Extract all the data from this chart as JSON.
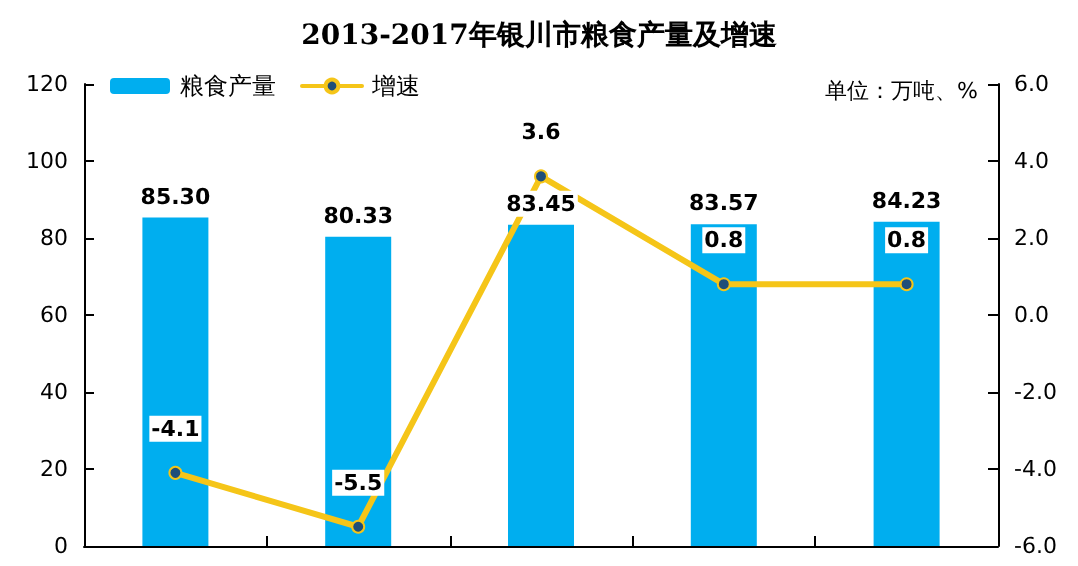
{
  "chart_data": {
    "type": "bar",
    "title": "2013-2017年银川市粮食产量及增速",
    "annotations": [
      "单位：万吨、%"
    ],
    "categories": [
      null,
      null,
      null,
      null,
      null
    ],
    "series": [
      {
        "name": "粮食产量",
        "type": "bar",
        "color": "#00aeef",
        "values": [
          85.3,
          80.33,
          83.45,
          83.57,
          84.23
        ],
        "value_labels": [
          "85.30",
          "80.33",
          "83.45",
          "83.57",
          "84.23"
        ]
      },
      {
        "name": "增速",
        "type": "line",
        "axis": "y2",
        "color": "#f5c518",
        "marker": "circle",
        "values": [
          -4.1,
          -5.5,
          3.6,
          0.8,
          0.8
        ],
        "value_labels": [
          "-4.1",
          "-5.5",
          "3.6",
          "0.8",
          "0.8"
        ]
      }
    ],
    "ylim": [
      0,
      120
    ],
    "yticks": [
      0,
      20,
      40,
      60,
      80,
      100,
      120
    ],
    "y2lim": [
      -6,
      6
    ],
    "y2ticks": [
      {
        "value": -6,
        "label": "-6.0"
      },
      {
        "value": -4,
        "label": "-4.0"
      },
      {
        "value": -2,
        "label": "-2.0"
      },
      {
        "value": 0,
        "label": "0.0"
      },
      {
        "value": 2,
        "label": "2.0"
      },
      {
        "value": 4,
        "label": "4.0"
      },
      {
        "value": 6,
        "label": "6.0"
      }
    ],
    "grid": false,
    "legend": "top left"
  }
}
